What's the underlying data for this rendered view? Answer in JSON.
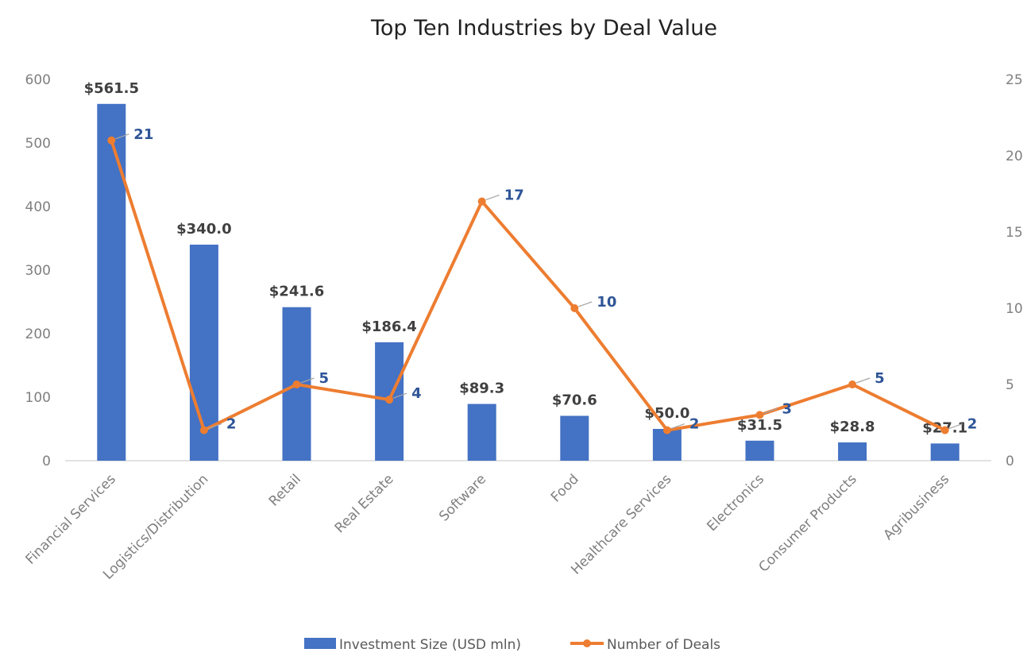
{
  "chart_data": {
    "type": "bar",
    "title": "Top Ten Industries by Deal Value",
    "categories": [
      "Financial Services",
      "Logistics/Distribution",
      "Retail",
      "Real Estate",
      "Software",
      "Food",
      "Healthcare Services",
      "Electronics",
      "Consumer Products",
      "Agribusiness"
    ],
    "series": [
      {
        "name": "Investment Size (USD mln)",
        "type": "bar",
        "axis": "left",
        "color": "#4472c4",
        "values": [
          561.5,
          340.0,
          241.6,
          186.4,
          89.3,
          70.6,
          50.0,
          31.5,
          28.8,
          27.1
        ],
        "labels": [
          "$561.5",
          "$340.0",
          "$241.6",
          "$186.4",
          "$89.3",
          "$70.6",
          "$50.0",
          "$31.5",
          "$28.8",
          "$27.1"
        ]
      },
      {
        "name": "Number of Deals",
        "type": "line",
        "axis": "right",
        "color": "#ed7d31",
        "values": [
          21,
          2,
          5,
          4,
          17,
          10,
          2,
          3,
          5,
          2
        ],
        "labels": [
          "21",
          "2",
          "5",
          "4",
          "17",
          "10",
          "2",
          "3",
          "5",
          "2"
        ]
      }
    ],
    "ylim_left": [
      0,
      600
    ],
    "yticks_left": [
      "0",
      "100",
      "200",
      "300",
      "400",
      "500",
      "600"
    ],
    "ylim_right": [
      0,
      25
    ],
    "yticks_right": [
      "0",
      "5",
      "10",
      "15",
      "20",
      "25"
    ],
    "grid": false,
    "legend": "bottom",
    "label_color_bar": "#404040",
    "label_color_line": "#2f5597"
  }
}
